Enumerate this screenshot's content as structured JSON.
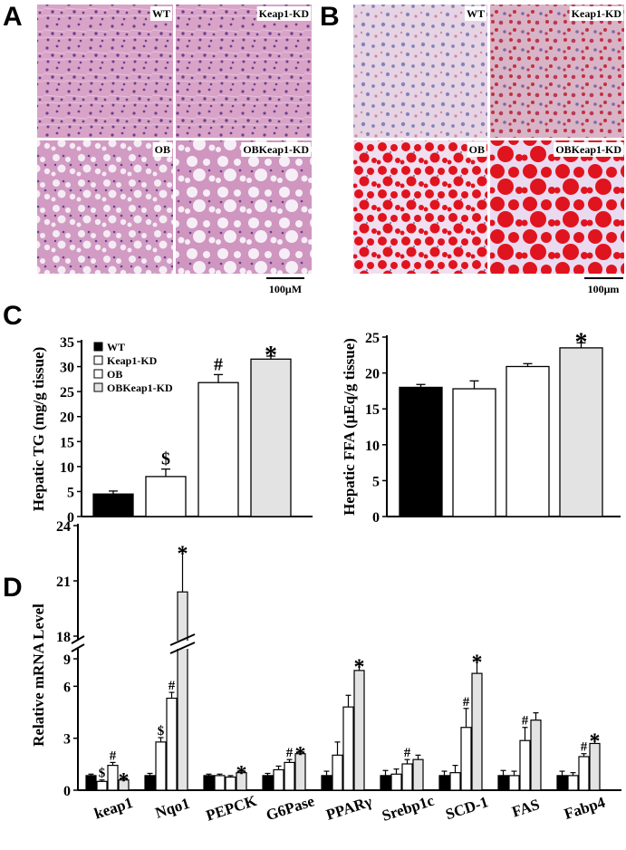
{
  "panels": {
    "A": {
      "letter": "A",
      "images": [
        {
          "label": "WT",
          "stain": "HE",
          "texture": "normal"
        },
        {
          "label": "Keap1-KD",
          "stain": "HE",
          "texture": "normal"
        },
        {
          "label": "OB",
          "stain": "HE",
          "texture": "vacuolated"
        },
        {
          "label": "OBKeap1-KD",
          "stain": "HE",
          "texture": "vacuolated-large"
        }
      ],
      "scale_bar": "100μM",
      "colors": {
        "base": "#d9a2c8",
        "nuclei": "#6a3f8f",
        "vacuole": "#f4ecf4"
      }
    },
    "B": {
      "letter": "B",
      "images": [
        {
          "label": "WT",
          "stain": "Oil Red O",
          "texture": "light"
        },
        {
          "label": "Keap1-KD",
          "stain": "Oil Red O",
          "texture": "light-red"
        },
        {
          "label": "OB",
          "stain": "Oil Red O",
          "texture": "red-droplets"
        },
        {
          "label": "OBKeap1-KD",
          "stain": "Oil Red O",
          "texture": "red-large"
        }
      ],
      "scale_bar": "100μm",
      "colors": {
        "base": "#e9d6e6",
        "nuclei": "#6b6fb0",
        "lipid": "#e0141e"
      }
    },
    "C": {
      "letter": "C"
    },
    "D": {
      "letter": "D"
    }
  },
  "chart_data": [
    {
      "id": "C-left",
      "type": "bar",
      "ylabel": "Hepatic TG (mg/g tissue)",
      "ylim": [
        0,
        35
      ],
      "yticks": [
        0,
        5,
        10,
        15,
        20,
        25,
        30,
        35
      ],
      "categories": [
        "WT",
        "Keap1-KD",
        "OB",
        "OBKeap1-KD"
      ],
      "values": [
        4.5,
        8.0,
        26.8,
        31.5
      ],
      "errors": [
        0.6,
        1.5,
        1.6,
        0.6
      ],
      "annotations": [
        "",
        "$",
        "#",
        "*"
      ],
      "legend": {
        "position": "top-left",
        "entries": [
          "WT",
          "Keap1-KD",
          "OB",
          "OBKeap1-KD"
        ]
      }
    },
    {
      "id": "C-right",
      "type": "bar",
      "ylabel": "Hepatic FFA (μEq/g tissue)",
      "ylim": [
        0,
        25
      ],
      "yticks": [
        0,
        5,
        10,
        15,
        20,
        25
      ],
      "categories": [
        "WT",
        "Keap1-KD",
        "OB",
        "OBKeap1-KD"
      ],
      "values": [
        18.0,
        17.8,
        20.9,
        23.5
      ],
      "errors": [
        0.4,
        1.1,
        0.4,
        0.7
      ],
      "annotations": [
        "",
        "",
        "",
        "*"
      ]
    },
    {
      "id": "D",
      "type": "bar",
      "ylabel": "Relative mRNA Level",
      "axis_break": [
        9,
        18
      ],
      "ylim": [
        0,
        24
      ],
      "yticks": [
        0,
        3,
        6,
        9,
        18,
        21,
        24
      ],
      "categories": [
        "keap1",
        "Nqo1",
        "PEPCK",
        "G6Pase",
        "PPARγ",
        "Srebp1c",
        "SCD-1",
        "FAS",
        "Fabp4"
      ],
      "series": [
        {
          "name": "WT",
          "values": [
            1.0,
            1.0,
            1.0,
            1.0,
            1.0,
            1.0,
            1.0,
            1.0,
            1.0
          ],
          "errors": [
            0.1,
            0.15,
            0.1,
            0.15,
            0.3,
            0.35,
            0.3,
            0.35,
            0.3
          ],
          "annotations": [
            "",
            "",
            "",
            "",
            "",
            "",
            "",
            "",
            ""
          ]
        },
        {
          "name": "Keap1-KD",
          "values": [
            0.6,
            3.3,
            1.0,
            1.4,
            2.4,
            1.1,
            1.2,
            1.0,
            1.0
          ],
          "errors": [
            0.1,
            0.3,
            0.1,
            0.25,
            0.9,
            0.35,
            0.5,
            0.3,
            0.2
          ],
          "annotations": [
            "$",
            "$",
            "",
            "",
            "",
            "",
            "",
            "",
            ""
          ]
        },
        {
          "name": "OB",
          "values": [
            1.7,
            6.3,
            0.9,
            1.9,
            5.7,
            1.8,
            4.3,
            3.4,
            2.3
          ],
          "errors": [
            0.2,
            0.4,
            0.1,
            0.2,
            0.8,
            0.3,
            1.3,
            0.9,
            0.2
          ],
          "annotations": [
            "#",
            "#",
            "",
            "#",
            "",
            "#",
            "#",
            "#",
            "#"
          ]
        },
        {
          "name": "OBKeap1-KD",
          "values": [
            0.7,
            20.4,
            1.2,
            2.5,
            8.2,
            2.1,
            8.0,
            4.8,
            3.2
          ],
          "errors": [
            0.1,
            2.2,
            0.1,
            0.1,
            0.4,
            0.3,
            0.9,
            0.5,
            0.3
          ],
          "annotations": [
            "*",
            "*",
            "*",
            "*",
            "*",
            "",
            "*",
            "",
            "*"
          ]
        }
      ],
      "colors": [
        "#000000",
        "#ffffff",
        "#ffffff",
        "#e3e3e3"
      ]
    }
  ]
}
